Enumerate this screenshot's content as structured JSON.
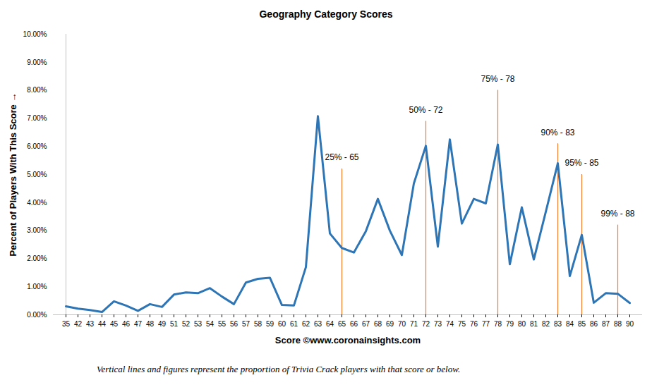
{
  "chart_data": {
    "type": "line",
    "title": "Geography Category Scores",
    "x_label": "Score ©www.coronainsights.com",
    "y_label": "Percent of Players With This Score",
    "caption": "Vertical lines and figures represent the proportion of Trivia Crack players with that score or below.",
    "categories": [
      35,
      42,
      43,
      44,
      45,
      46,
      47,
      48,
      49,
      51,
      52,
      53,
      54,
      55,
      56,
      57,
      58,
      59,
      60,
      61,
      62,
      63,
      64,
      65,
      66,
      67,
      68,
      69,
      70,
      71,
      72,
      73,
      74,
      75,
      76,
      77,
      78,
      79,
      80,
      81,
      82,
      83,
      84,
      85,
      86,
      87,
      88,
      90
    ],
    "values": [
      0.3,
      0.22,
      0.17,
      0.1,
      0.48,
      0.33,
      0.14,
      0.38,
      0.28,
      0.72,
      0.8,
      0.77,
      0.95,
      0.65,
      0.38,
      1.15,
      1.28,
      1.32,
      0.35,
      0.33,
      1.7,
      7.08,
      2.9,
      2.38,
      2.22,
      2.98,
      4.13,
      3.0,
      2.13,
      4.68,
      6.02,
      2.43,
      6.25,
      3.25,
      4.13,
      3.97,
      6.07,
      1.8,
      3.83,
      1.97,
      3.67,
      5.4,
      1.38,
      2.85,
      0.43,
      0.77,
      0.75,
      0.42
    ],
    "color": "#2e75b6",
    "ylim": [
      0,
      10
    ],
    "yticks": [
      {
        "value": 0,
        "label": "0.00%"
      },
      {
        "value": 1,
        "label": "1.00%"
      },
      {
        "value": 2,
        "label": "2.00%"
      },
      {
        "value": 3,
        "label": "3.00%"
      },
      {
        "value": 4,
        "label": "4.00%"
      },
      {
        "value": 5,
        "label": "5.00%"
      },
      {
        "value": 6,
        "label": "6.00%"
      },
      {
        "value": 7,
        "label": "7.00%"
      },
      {
        "value": 8,
        "label": "8.00%"
      },
      {
        "value": 9,
        "label": "9.00%"
      },
      {
        "value": 10,
        "label": "10.00%"
      }
    ],
    "grid": false,
    "markers": {
      "color": "#ed7d31",
      "items": [
        {
          "label": "25% - 65",
          "x": 65,
          "y": 5.2
        },
        {
          "label": "50% - 72",
          "x": 72,
          "y": 6.9
        },
        {
          "label": "75% - 78",
          "x": 78,
          "y": 8.0
        },
        {
          "label": "90% - 83",
          "x": 83,
          "y": 6.1
        },
        {
          "label": "95% - 85",
          "x": 85,
          "y": 5.0
        },
        {
          "label": "99% - 88",
          "x": 88,
          "y": 3.2
        }
      ]
    }
  }
}
